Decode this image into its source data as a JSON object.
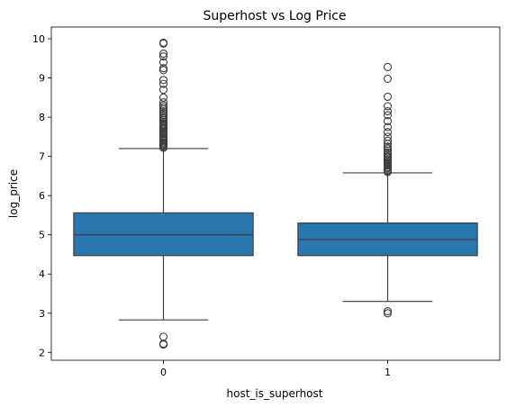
{
  "chart_data": {
    "type": "box",
    "title": "Superhost vs Log Price",
    "xlabel": "host_is_superhost",
    "ylabel": "log_price",
    "categories": [
      "0",
      "1"
    ],
    "ylim": [
      1.8,
      10.3
    ],
    "yticks": [
      2,
      3,
      4,
      5,
      6,
      7,
      8,
      9,
      10
    ],
    "grid": false,
    "box_color": "#2a76ae",
    "boxes": [
      {
        "category": "0",
        "whisker_low": 2.83,
        "q1": 4.47,
        "median": 5.0,
        "q3": 5.56,
        "whisker_high": 7.2,
        "outliers": [
          2.2,
          2.22,
          2.4,
          7.22,
          7.25,
          7.28,
          7.3,
          7.33,
          7.36,
          7.4,
          7.43,
          7.46,
          7.5,
          7.53,
          7.57,
          7.6,
          7.63,
          7.66,
          7.7,
          7.73,
          7.77,
          7.8,
          7.84,
          7.88,
          7.92,
          7.96,
          8.0,
          8.05,
          8.1,
          8.15,
          8.2,
          8.25,
          8.3,
          8.38,
          8.5,
          8.7,
          8.85,
          8.95,
          9.2,
          9.25,
          9.4,
          9.55,
          9.62,
          9.88,
          9.9
        ]
      },
      {
        "category": "1",
        "whisker_low": 3.3,
        "q1": 4.47,
        "median": 4.88,
        "q3": 5.3,
        "whisker_high": 6.58,
        "outliers": [
          3.0,
          3.05,
          6.6,
          6.63,
          6.66,
          6.7,
          6.73,
          6.77,
          6.8,
          6.83,
          6.86,
          6.9,
          6.93,
          6.97,
          7.0,
          7.05,
          7.1,
          7.15,
          7.2,
          7.25,
          7.32,
          7.4,
          7.5,
          7.62,
          7.75,
          7.9,
          8.05,
          8.15,
          8.28,
          8.52,
          8.98,
          9.28
        ]
      }
    ]
  }
}
